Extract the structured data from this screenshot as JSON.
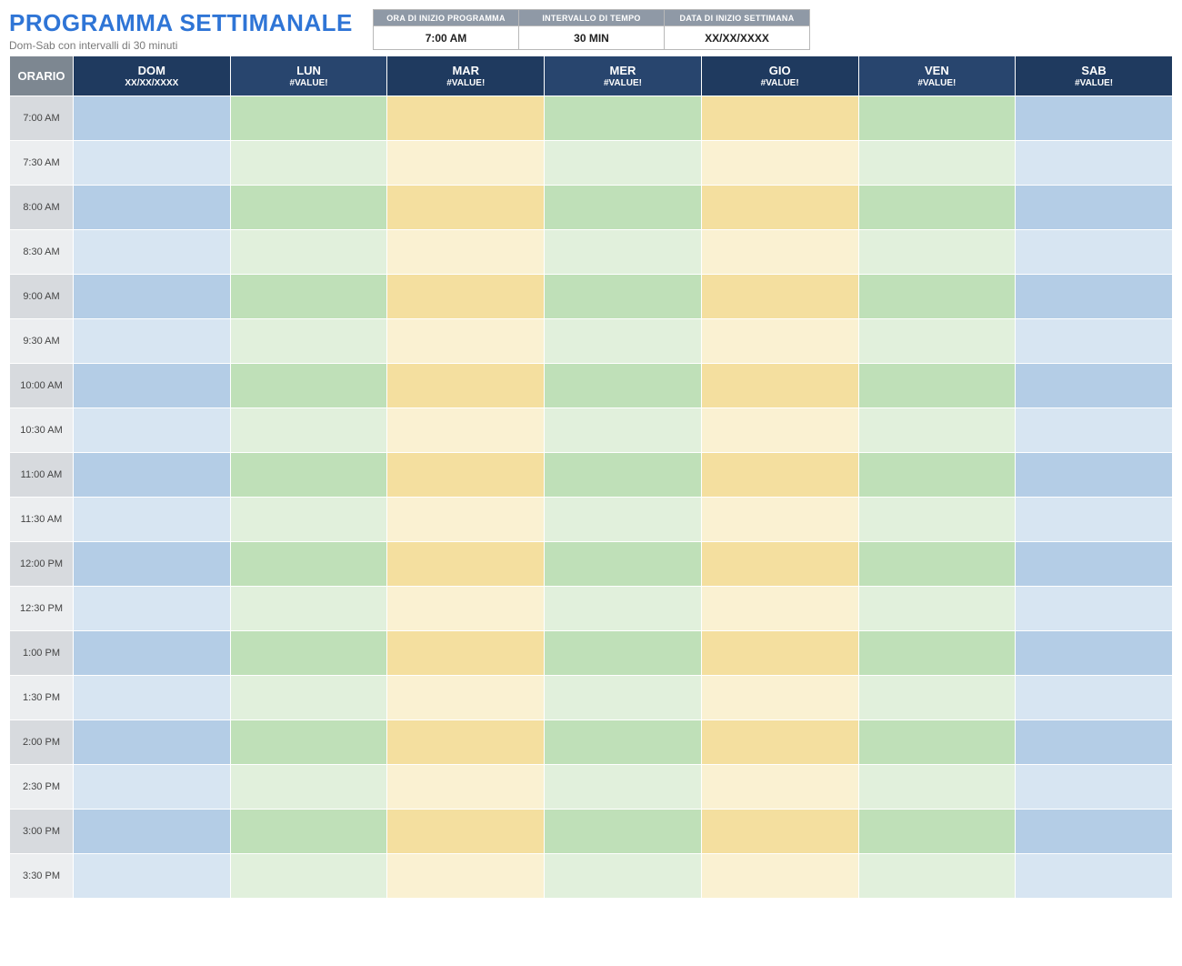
{
  "title": "PROGRAMMA SETTIMANALE",
  "subtitle": "Dom-Sab con intervalli di 30 minuti",
  "meta": {
    "headers": [
      "ORA DI INIZIO PROGRAMMA",
      "INTERVALLO DI TEMPO",
      "DATA DI INIZIO SETTIMANA"
    ],
    "values": [
      "7:00 AM",
      "30 MIN",
      "XX/XX/XXXX"
    ]
  },
  "schedule": {
    "time_header": "ORARIO",
    "days": [
      {
        "label": "DOM",
        "sub": "XX/XX/XXXX"
      },
      {
        "label": "LUN",
        "sub": "#VALUE!"
      },
      {
        "label": "MAR",
        "sub": "#VALUE!"
      },
      {
        "label": "MER",
        "sub": "#VALUE!"
      },
      {
        "label": "GIO",
        "sub": "#VALUE!"
      },
      {
        "label": "VEN",
        "sub": "#VALUE!"
      },
      {
        "label": "SAB",
        "sub": "#VALUE!"
      }
    ],
    "day_header_colors": [
      "#1f3a5f",
      "#28456e",
      "#1f3a5f",
      "#28456e",
      "#1f3a5f",
      "#28456e",
      "#1f3a5f"
    ],
    "times": [
      "7:00 AM",
      "7:30 AM",
      "8:00 AM",
      "8:30 AM",
      "9:00 AM",
      "9:30 AM",
      "10:00 AM",
      "10:30 AM",
      "11:00 AM",
      "11:30 AM",
      "12:00 PM",
      "12:30 PM",
      "1:00 PM",
      "1:30 PM",
      "2:00 PM",
      "2:30 PM",
      "3:00 PM",
      "3:30 PM"
    ],
    "column_colors": {
      "0": {
        "dark": "#b4cde6",
        "light": "#d7e5f2"
      },
      "1": {
        "dark": "#bfe0b8",
        "light": "#e1f0dc"
      },
      "2": {
        "dark": "#f4df9f",
        "light": "#faf1d2"
      },
      "3": {
        "dark": "#bfe0b8",
        "light": "#e1f0dc"
      },
      "4": {
        "dark": "#f4df9f",
        "light": "#faf1d2"
      },
      "5": {
        "dark": "#bfe0b8",
        "light": "#e1f0dc"
      },
      "6": {
        "dark": "#b4cde6",
        "light": "#d7e5f2"
      }
    },
    "time_cell_colors": {
      "dark": "#d7dade",
      "light": "#eceef0"
    }
  },
  "colors": {
    "title": "#2f75d6",
    "subtitle": "#7a7a7a",
    "meta_header_bg": "#8f99a6",
    "time_header_bg": "#7d8791",
    "border_white": "#ffffff"
  }
}
